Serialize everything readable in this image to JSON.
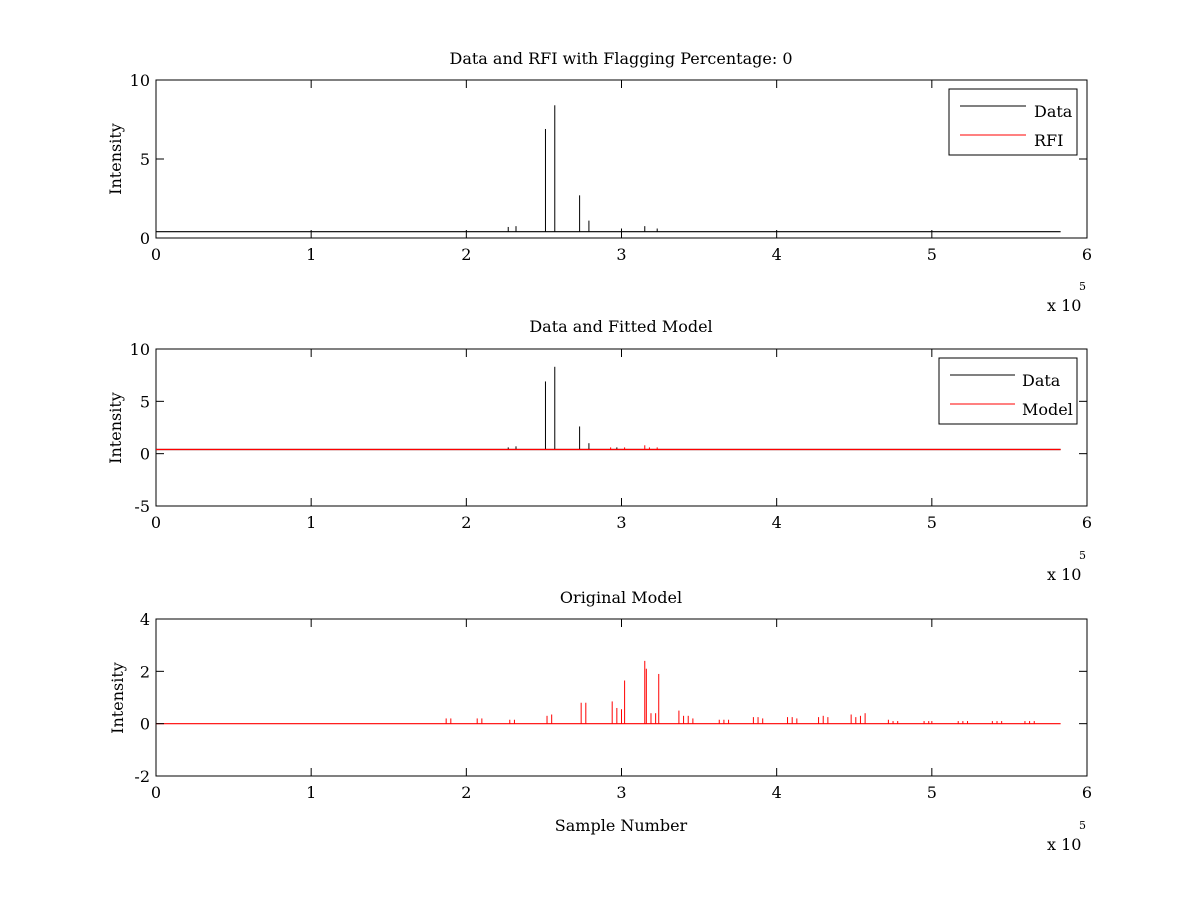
{
  "chart_data": [
    {
      "type": "line",
      "title": "Data and RFI with Flagging Percentage: 0",
      "xlabel": "",
      "ylabel": "Intensity",
      "xlim": [
        0,
        6
      ],
      "ylim": [
        0,
        10
      ],
      "x_ticks": [
        "0",
        "1",
        "2",
        "3",
        "4",
        "5",
        "6"
      ],
      "y_ticks": [
        "0",
        "5",
        "10"
      ],
      "x_multiplier": "x 10",
      "x_exponent": "5",
      "legend": {
        "placement": "top-right",
        "entries": [
          "Data",
          "RFI"
        ]
      },
      "series": [
        {
          "name": "Data",
          "color": "#000000",
          "baseline": 0.4,
          "x_end": 5.83,
          "spikes": [
            [
              2.51,
              6.9
            ],
            [
              2.57,
              8.4
            ],
            [
              2.73,
              2.7
            ],
            [
              2.79,
              1.1
            ],
            [
              2.27,
              0.7
            ],
            [
              2.32,
              0.75
            ],
            [
              3.0,
              0.6
            ],
            [
              3.15,
              0.75
            ],
            [
              3.23,
              0.6
            ]
          ]
        },
        {
          "name": "RFI",
          "color": "#ff0000",
          "values": []
        }
      ]
    },
    {
      "type": "line",
      "title": "Data and Fitted Model",
      "xlabel": "",
      "ylabel": "Intensity",
      "xlim": [
        0,
        6
      ],
      "ylim": [
        -5,
        10
      ],
      "x_ticks": [
        "0",
        "1",
        "2",
        "3",
        "4",
        "5",
        "6"
      ],
      "y_ticks": [
        "-5",
        "0",
        "5",
        "10"
      ],
      "x_multiplier": "x 10",
      "x_exponent": "5",
      "legend": {
        "placement": "top-right",
        "entries": [
          "Data",
          "Model"
        ]
      },
      "series": [
        {
          "name": "Data",
          "color": "#000000",
          "baseline": 0.4,
          "x_end": 5.83,
          "spikes": [
            [
              2.51,
              6.9
            ],
            [
              2.57,
              8.3
            ],
            [
              2.73,
              2.6
            ],
            [
              2.79,
              1.0
            ],
            [
              2.27,
              0.6
            ],
            [
              2.32,
              0.7
            ],
            [
              2.97,
              0.6
            ]
          ]
        },
        {
          "name": "Model",
          "color": "#ff0000",
          "baseline": 0.4,
          "x_end": 5.83,
          "spikes": [
            [
              3.15,
              0.8
            ],
            [
              3.18,
              0.6
            ],
            [
              3.23,
              0.6
            ],
            [
              2.93,
              0.6
            ],
            [
              3.02,
              0.6
            ]
          ]
        }
      ]
    },
    {
      "type": "line",
      "title": "Original Model",
      "xlabel": "Sample Number",
      "ylabel": "Intensity",
      "xlim": [
        0,
        6
      ],
      "ylim": [
        -2,
        4
      ],
      "x_ticks": [
        "0",
        "1",
        "2",
        "3",
        "4",
        "5",
        "6"
      ],
      "y_ticks": [
        "-2",
        "0",
        "2",
        "4"
      ],
      "x_multiplier": "x 10",
      "x_exponent": "5",
      "series": [
        {
          "name": "Model",
          "color": "#ff0000",
          "baseline": 0.0,
          "x_start": 0.0,
          "x_end": 5.83,
          "spikes": [
            [
              1.87,
              0.2
            ],
            [
              1.9,
              0.2
            ],
            [
              2.07,
              0.2
            ],
            [
              2.1,
              0.2
            ],
            [
              2.28,
              0.15
            ],
            [
              2.31,
              0.15
            ],
            [
              2.52,
              0.3
            ],
            [
              2.55,
              0.35
            ],
            [
              2.74,
              0.8
            ],
            [
              2.77,
              0.8
            ],
            [
              2.94,
              0.85
            ],
            [
              2.97,
              0.6
            ],
            [
              3.0,
              0.55
            ],
            [
              3.02,
              1.65
            ],
            [
              3.15,
              2.4
            ],
            [
              3.16,
              2.1
            ],
            [
              3.19,
              0.4
            ],
            [
              3.22,
              0.4
            ],
            [
              3.24,
              1.9
            ],
            [
              3.37,
              0.5
            ],
            [
              3.4,
              0.3
            ],
            [
              3.43,
              0.3
            ],
            [
              3.46,
              0.2
            ],
            [
              3.63,
              0.15
            ],
            [
              3.66,
              0.15
            ],
            [
              3.69,
              0.15
            ],
            [
              3.85,
              0.25
            ],
            [
              3.88,
              0.25
            ],
            [
              3.91,
              0.2
            ],
            [
              4.07,
              0.25
            ],
            [
              4.1,
              0.25
            ],
            [
              4.13,
              0.2
            ],
            [
              4.27,
              0.25
            ],
            [
              4.3,
              0.3
            ],
            [
              4.33,
              0.25
            ],
            [
              4.48,
              0.35
            ],
            [
              4.51,
              0.25
            ],
            [
              4.54,
              0.3
            ],
            [
              4.57,
              0.4
            ],
            [
              4.72,
              0.15
            ],
            [
              4.75,
              0.1
            ],
            [
              4.78,
              0.1
            ],
            [
              4.95,
              0.1
            ],
            [
              4.98,
              0.1
            ],
            [
              5.0,
              0.1
            ],
            [
              5.17,
              0.1
            ],
            [
              5.2,
              0.1
            ],
            [
              5.23,
              0.1
            ],
            [
              5.39,
              0.1
            ],
            [
              5.42,
              0.1
            ],
            [
              5.45,
              0.1
            ],
            [
              5.6,
              0.1
            ],
            [
              5.63,
              0.1
            ],
            [
              5.66,
              0.1
            ]
          ]
        }
      ]
    }
  ]
}
